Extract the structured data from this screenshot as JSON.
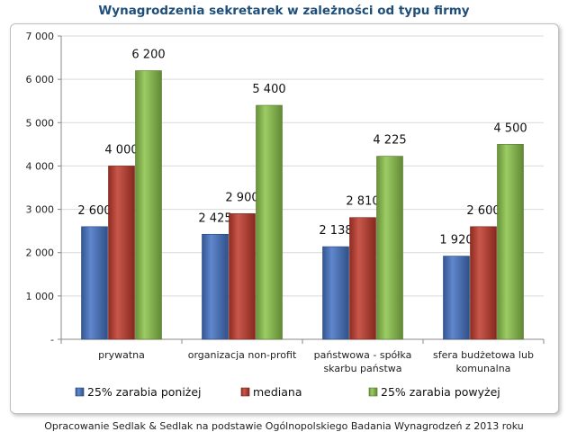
{
  "chart_data": {
    "type": "bar",
    "title": "Wynagrodzenia sekretarek w zależności od typu firmy",
    "categories": [
      [
        "prywatna"
      ],
      [
        "organizacja non-profit"
      ],
      [
        "państwowa - spółka",
        "skarbu państwa"
      ],
      [
        "sfera budżetowa lub",
        "komunalna"
      ]
    ],
    "series": [
      {
        "name": "25% zarabia poniżej",
        "color": "#4472c4",
        "values": [
          2600,
          2425,
          2138,
          1920
        ],
        "labels": [
          "2 600",
          "2 425",
          "2 138",
          "1 920"
        ]
      },
      {
        "name": "mediana",
        "color": "#c0392b",
        "values": [
          4000,
          2900,
          2810,
          2600
        ],
        "labels": [
          "4 000",
          "2 900",
          "2 810",
          "2 600"
        ]
      },
      {
        "name": "25% zarabia powyżej",
        "color": "#8bc34a",
        "values": [
          6200,
          5400,
          4225,
          4500
        ],
        "labels": [
          "6 200",
          "5 400",
          "4 225",
          "4 500"
        ]
      }
    ],
    "yticks": [
      0,
      1000,
      2000,
      3000,
      4000,
      5000,
      6000,
      7000
    ],
    "ytick_labels": [
      "-",
      "1 000",
      "2 000",
      "3 000",
      "4 000",
      "5 000",
      "6 000",
      "7 000"
    ],
    "ylim": [
      0,
      7000
    ],
    "xlabel": "",
    "ylabel": "",
    "legend_position": "bottom",
    "grid": true
  },
  "footer": "Opracowanie Sedlak & Sedlak na podstawie Ogólnopolskiego Badania Wynagrodzeń z 2013 roku"
}
